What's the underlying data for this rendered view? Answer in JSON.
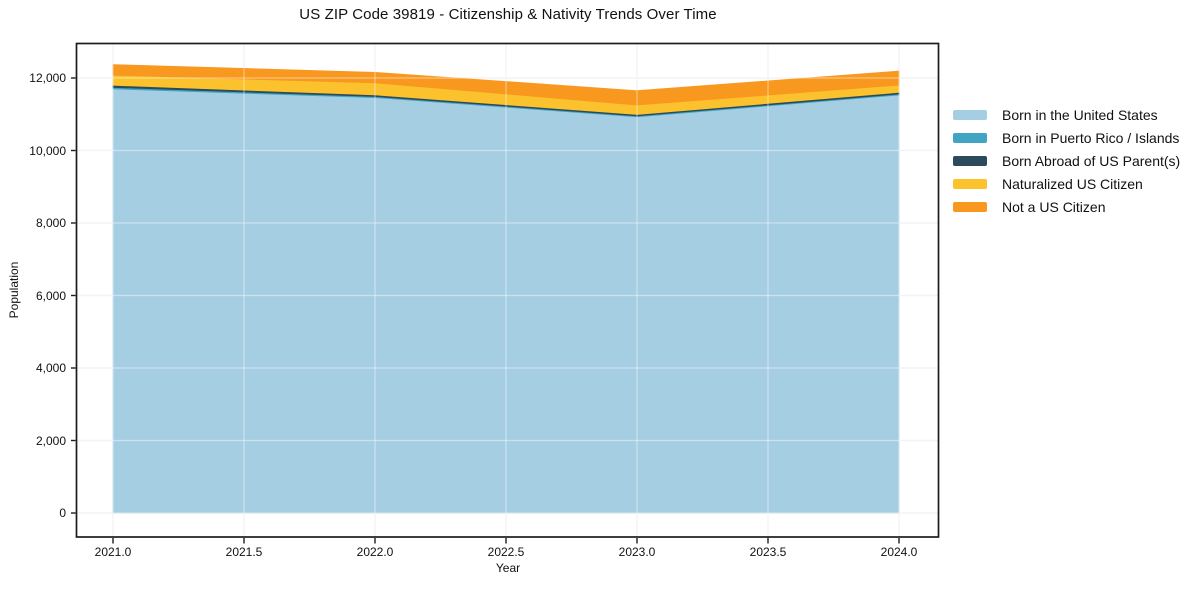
{
  "title": "US ZIP Code 39819 - Citizenship & Nativity Trends Over Time",
  "chart_data": {
    "type": "area",
    "stacked": true,
    "title": "US ZIP Code 39819 - Citizenship & Nativity Trends Over Time",
    "xlabel": "Year",
    "ylabel": "Population",
    "grid": true,
    "legend_position": "right-outside",
    "x": [
      2021,
      2022,
      2023,
      2024
    ],
    "series": [
      {
        "name": "Born in the United States",
        "color": "#a5cee3",
        "values": [
          11700,
          11460,
          10930,
          11530
        ]
      },
      {
        "name": "Born in Puerto Rico / Islands",
        "color": "#41a4c2",
        "values": [
          40,
          30,
          25,
          30
        ]
      },
      {
        "name": "Born Abroad of US Parent(s)",
        "color": "#2b4a5c",
        "values": [
          60,
          45,
          40,
          45
        ]
      },
      {
        "name": "Naturalized US Citizen",
        "color": "#fcc22d",
        "values": [
          280,
          330,
          260,
          200
        ]
      },
      {
        "name": "Not a US Citizen",
        "color": "#f8981f",
        "values": [
          290,
          290,
          395,
          385
        ]
      }
    ],
    "totals": [
      12370,
      12155,
      11650,
      12190
    ],
    "xlim": [
      2020.86,
      2024.15
    ],
    "ylim": [
      -660,
      12950
    ],
    "x_ticks": [
      {
        "v": 2021.0,
        "label": "2021.0"
      },
      {
        "v": 2021.5,
        "label": "2021.5"
      },
      {
        "v": 2022.0,
        "label": "2022.0"
      },
      {
        "v": 2022.5,
        "label": "2022.5"
      },
      {
        "v": 2023.0,
        "label": "2023.0"
      },
      {
        "v": 2023.5,
        "label": "2023.5"
      },
      {
        "v": 2024.0,
        "label": "2024.0"
      }
    ],
    "y_ticks": [
      {
        "v": 0,
        "label": "0"
      },
      {
        "v": 2000,
        "label": "2,000"
      },
      {
        "v": 4000,
        "label": "4,000"
      },
      {
        "v": 6000,
        "label": "6,000"
      },
      {
        "v": 8000,
        "label": "8,000"
      },
      {
        "v": 10000,
        "label": "10,000"
      },
      {
        "v": 12000,
        "label": "12,000"
      }
    ]
  }
}
